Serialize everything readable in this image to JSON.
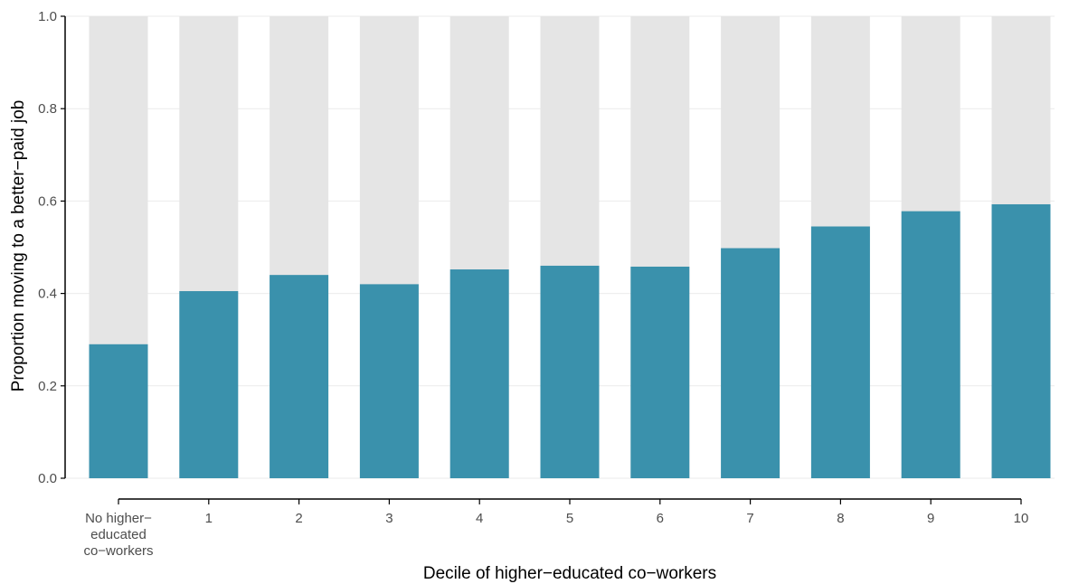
{
  "chart_data": {
    "type": "bar",
    "title": "",
    "xlabel": "Decile of higher−educated co−workers",
    "ylabel": "Proportion moving to a better−paid job",
    "ylim": [
      0,
      1
    ],
    "yticks": [
      "0.0",
      "0.2",
      "0.4",
      "0.6",
      "0.8",
      "1.0"
    ],
    "grid": "horizontal",
    "stacked_background": true,
    "categories": [
      [
        "No higher−",
        "educated",
        "co−workers"
      ],
      [
        "1"
      ],
      [
        "2"
      ],
      [
        "3"
      ],
      [
        "4"
      ],
      [
        "5"
      ],
      [
        "6"
      ],
      [
        "7"
      ],
      [
        "8"
      ],
      [
        "9"
      ],
      [
        "10"
      ]
    ],
    "values": [
      0.29,
      0.405,
      0.44,
      0.42,
      0.452,
      0.46,
      0.458,
      0.498,
      0.545,
      0.578,
      0.593
    ],
    "colors": {
      "bar": "#3a91ac",
      "background_bar": "#e5e5e5",
      "grid": "#ebebeb",
      "axis": "#000000"
    }
  }
}
